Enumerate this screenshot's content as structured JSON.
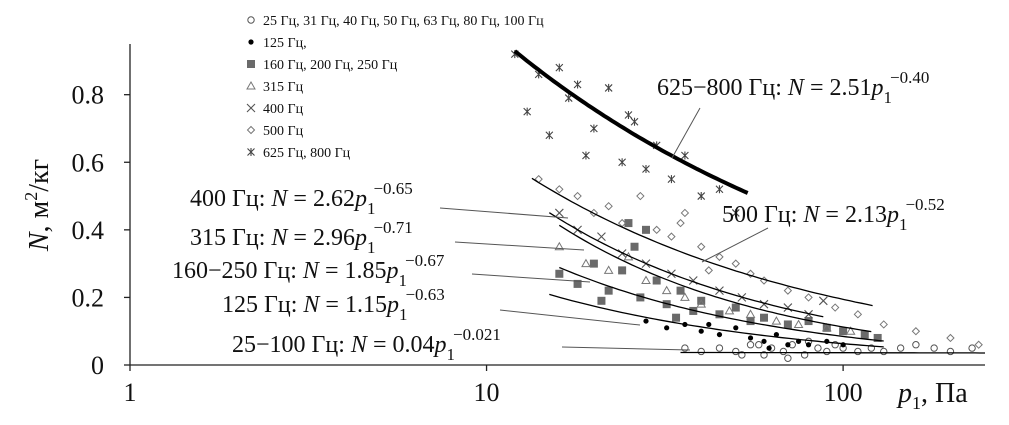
{
  "chart_data": {
    "type": "scatter",
    "log_x": true,
    "xlabel": [
      "p",
      "1",
      ", Па"
    ],
    "ylabel": [
      "N",
      ", м",
      "2",
      "/кг"
    ],
    "xlim": [
      1,
      250
    ],
    "xticks": [
      1,
      10,
      100
    ],
    "ylim": [
      0,
      0.95
    ],
    "yticks": [
      0,
      0.2,
      0.4,
      0.6,
      0.8
    ],
    "series": [
      {
        "name": "25 Гц, 31 Гц, 40 Гц, 50 Гц, 63 Гц, 80 Гц, 100 Гц",
        "marker": "circle-open",
        "color": "#555555",
        "x": [
          36,
          40,
          45,
          50,
          55,
          60,
          63,
          68,
          72,
          78,
          85,
          90,
          95,
          100,
          110,
          120,
          130,
          145,
          160,
          180,
          200,
          230,
          70,
          80,
          52,
          58
        ],
        "values": [
          0.05,
          0.04,
          0.05,
          0.04,
          0.06,
          0.03,
          0.05,
          0.04,
          0.06,
          0.03,
          0.05,
          0.04,
          0.06,
          0.05,
          0.04,
          0.05,
          0.04,
          0.05,
          0.06,
          0.05,
          0.04,
          0.05,
          0.02,
          0.07,
          0.03,
          0.06
        ]
      },
      {
        "name": "125 Гц,",
        "marker": "dot",
        "color": "#000000",
        "x": [
          28,
          32,
          36,
          40,
          45,
          50,
          55,
          60,
          65,
          70,
          75,
          80,
          90,
          100,
          42,
          62
        ],
        "values": [
          0.13,
          0.11,
          0.12,
          0.1,
          0.09,
          0.11,
          0.08,
          0.07,
          0.09,
          0.06,
          0.07,
          0.06,
          0.07,
          0.06,
          0.12,
          0.05
        ]
      },
      {
        "name": "160 Гц, 200 Гц, 250 Гц",
        "marker": "square",
        "color": "#6a6a6a",
        "x": [
          16,
          18,
          20,
          22,
          24,
          25,
          27,
          30,
          32,
          35,
          38,
          40,
          45,
          50,
          55,
          60,
          70,
          80,
          90,
          100,
          115,
          125,
          26,
          28,
          21,
          34
        ],
        "values": [
          0.27,
          0.24,
          0.3,
          0.22,
          0.28,
          0.42,
          0.2,
          0.25,
          0.18,
          0.22,
          0.16,
          0.19,
          0.15,
          0.17,
          0.13,
          0.14,
          0.12,
          0.13,
          0.11,
          0.1,
          0.09,
          0.08,
          0.35,
          0.4,
          0.19,
          0.14
        ]
      },
      {
        "name": "315 Гц",
        "marker": "triangle",
        "color": "#777777",
        "x": [
          16,
          19,
          22,
          25,
          28,
          32,
          36,
          40,
          48,
          55,
          65,
          75,
          90,
          105
        ],
        "values": [
          0.35,
          0.3,
          0.28,
          0.32,
          0.25,
          0.22,
          0.2,
          0.18,
          0.16,
          0.15,
          0.13,
          0.12,
          0.11,
          0.1
        ]
      },
      {
        "name": "400 Гц",
        "marker": "x",
        "color": "#555555",
        "x": [
          16,
          18,
          21,
          24,
          28,
          33,
          38,
          45,
          52,
          60,
          70,
          80,
          88
        ],
        "values": [
          0.45,
          0.4,
          0.38,
          0.33,
          0.3,
          0.27,
          0.25,
          0.22,
          0.2,
          0.18,
          0.17,
          0.15,
          0.19
        ]
      },
      {
        "name": "500 Гц",
        "marker": "diamond",
        "color": "#777777",
        "x": [
          14,
          16,
          18,
          20,
          22,
          24,
          27,
          30,
          33,
          36,
          40,
          45,
          50,
          55,
          60,
          70,
          80,
          95,
          110,
          130,
          160,
          200,
          240,
          35,
          42
        ],
        "values": [
          0.55,
          0.52,
          0.5,
          0.45,
          0.47,
          0.42,
          0.5,
          0.4,
          0.38,
          0.45,
          0.35,
          0.32,
          0.3,
          0.27,
          0.25,
          0.22,
          0.2,
          0.17,
          0.15,
          0.12,
          0.1,
          0.08,
          0.06,
          0.42,
          0.28
        ]
      },
      {
        "name": "625 Гц, 800 Гц",
        "marker": "asterisk",
        "color": "#444444",
        "x": [
          12,
          13,
          14,
          15,
          17,
          18,
          20,
          22,
          24,
          26,
          28,
          30,
          33,
          36,
          40,
          45,
          50,
          19,
          25,
          16
        ],
        "values": [
          0.92,
          0.75,
          0.86,
          0.68,
          0.79,
          0.83,
          0.7,
          0.82,
          0.6,
          0.72,
          0.58,
          0.65,
          0.55,
          0.62,
          0.5,
          0.52,
          0.45,
          0.62,
          0.74,
          0.88
        ]
      }
    ],
    "fit_dependent": "N",
    "fit_equals": "=",
    "fit_variable": "p",
    "fit_subscript": "1",
    "fits": [
      {
        "label": "625−800 Гц:",
        "coefficient": 2.51,
        "exponent": {
          "value": -0.4,
          "label": "−0.40"
        },
        "x_range": [
          12,
          54
        ],
        "width": 4
      },
      {
        "label": "500 Гц:",
        "coefficient": 2.13,
        "exponent": {
          "value": -0.52,
          "label": "−0.52"
        },
        "x_range": [
          13.4,
          121
        ],
        "width": 1.3
      },
      {
        "label": "400 Гц:",
        "coefficient": 2.62,
        "exponent": {
          "value": -0.65,
          "label": "−0.65"
        },
        "x_range": [
          15,
          88
        ],
        "width": 1.3
      },
      {
        "label": "315 Гц:",
        "coefficient": 2.96,
        "exponent": {
          "value": -0.71,
          "label": "−0.71"
        },
        "x_range": [
          16,
          120
        ],
        "width": 1.3
      },
      {
        "label": "160−250 Гц:",
        "coefficient": 1.85,
        "exponent": {
          "value": -0.67,
          "label": "−0.67"
        },
        "x_range": [
          16,
          130
        ],
        "width": 1.3
      },
      {
        "label": "125 Гц:",
        "coefficient": 1.15,
        "exponent": {
          "value": -0.63,
          "label": "−0.63"
        },
        "x_range": [
          15,
          130
        ],
        "width": 1.3
      },
      {
        "label": "25−100 Гц:",
        "coefficient": 0.04,
        "exponent": {
          "value": -0.021,
          "label": "−0.021"
        },
        "x_range": [
          35,
          250
        ],
        "width": 1.3
      }
    ]
  }
}
